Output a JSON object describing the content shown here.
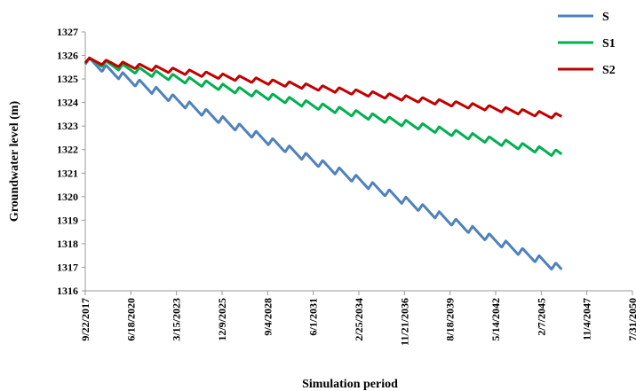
{
  "chart_data": {
    "type": "line",
    "title": "",
    "xlabel": "Simulation period",
    "ylabel": "Groundwater level (m)",
    "ylim": [
      1316,
      1327
    ],
    "yticks": [
      "1316",
      "1317",
      "1318",
      "1319",
      "1320",
      "1321",
      "1322",
      "1323",
      "1324",
      "1325",
      "1326",
      "1327"
    ],
    "xlim": [
      "9/22/2017",
      "7/31/2050"
    ],
    "xticks": [
      "9/22/2017",
      "6/18/2020",
      "3/15/2023",
      "12/9/2025",
      "9/4/2028",
      "6/1/2031",
      "2/25/2034",
      "11/21/2036",
      "8/18/2039",
      "5/14/2042",
      "2/7/2045",
      "11/4/2047",
      "7/31/2050"
    ],
    "x_end": "5/1/2046",
    "oscillation": "annual seasonal cycle (one peak and one trough per year)",
    "legend": "top-right",
    "grid": false,
    "series": [
      {
        "name": "S",
        "color": "#4f81bd",
        "start": 1325.8,
        "end": 1316.9,
        "amplitude": 0.35
      },
      {
        "name": "S1",
        "color": "#00b050",
        "start": 1325.8,
        "end": 1321.8,
        "amplitude": 0.28
      },
      {
        "name": "S2",
        "color": "#c00000",
        "start": 1325.8,
        "end": 1323.4,
        "amplitude": 0.22
      }
    ]
  }
}
